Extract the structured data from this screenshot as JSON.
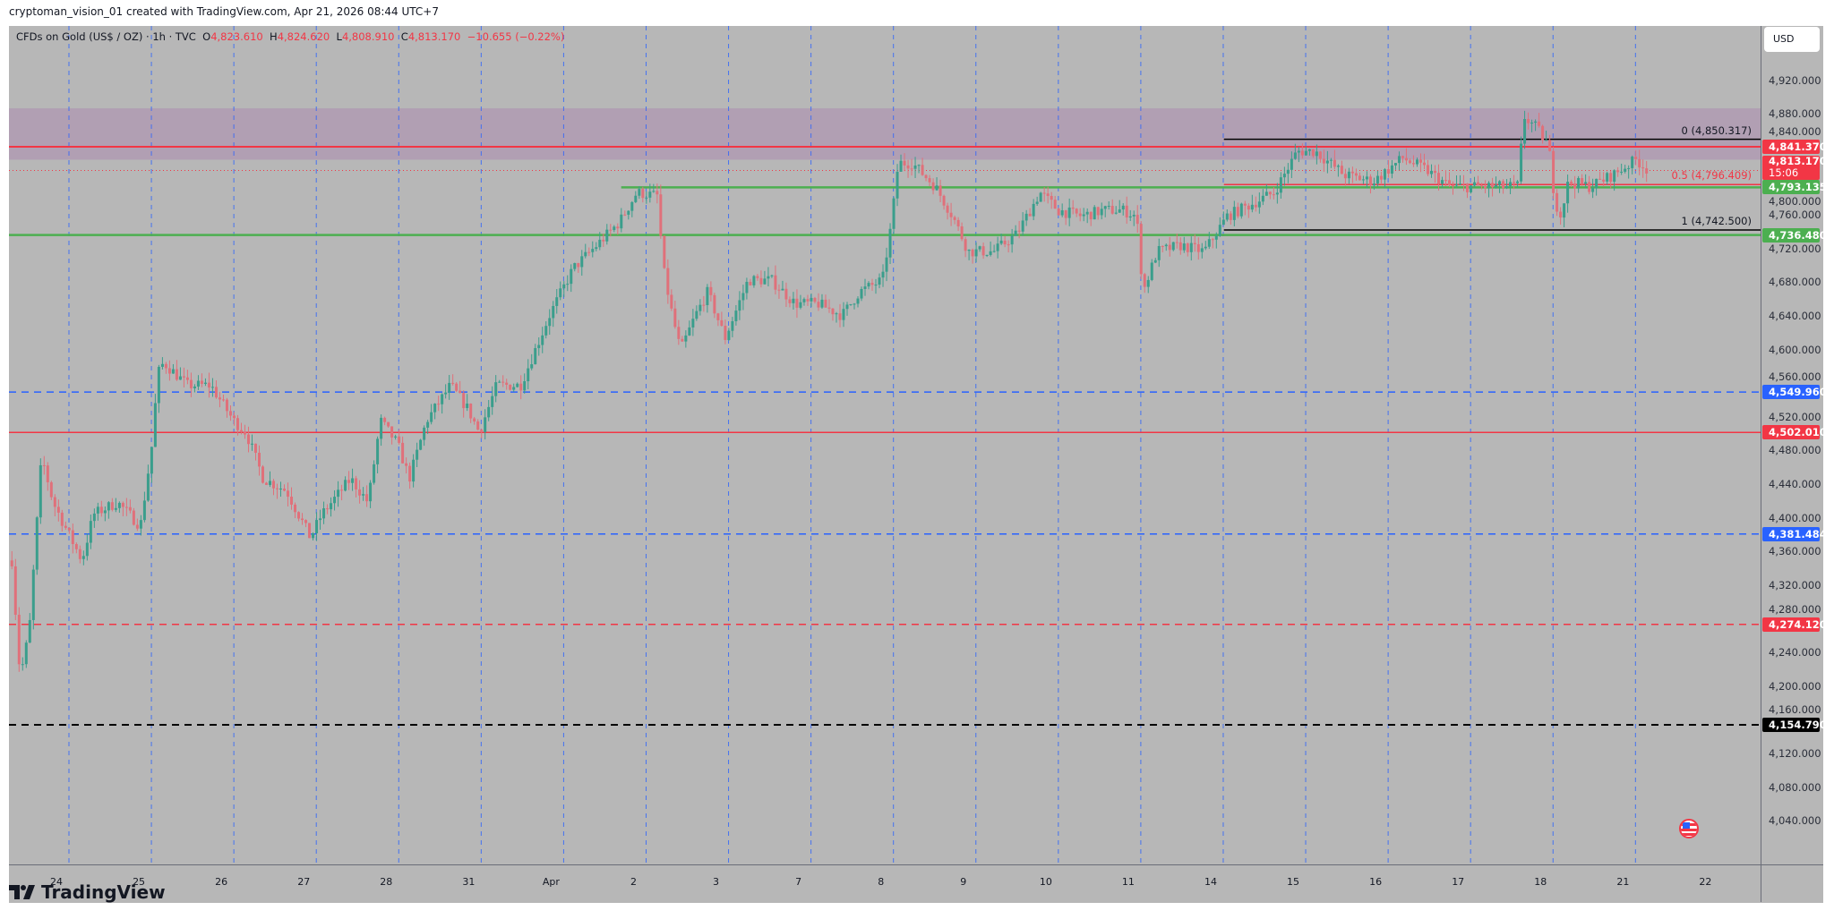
{
  "header": {
    "credit": "cryptoman_vision_01 created with TradingView.com, Apr 21, 2026 08:44 UTC+7",
    "symbol": "CFDs on Gold (US$ / OZ) · 1h · TVC",
    "o_label": "O",
    "o": "4,823.610",
    "h_label": "H",
    "h": "4,824.620",
    "l_label": "L",
    "l": "4,808.910",
    "c_label": "C",
    "c": "4,813.170",
    "change": "−10.655 (−0.22%)"
  },
  "axis": {
    "currency": "USD",
    "ticks": [
      "4,920.000",
      "4,880.000",
      "4,840.000",
      "4,800.000",
      "4,760.000",
      "4,720.000",
      "4,680.000",
      "4,640.000",
      "4,600.000",
      "4,560.000",
      "4,520.000",
      "4,480.000",
      "4,440.000",
      "4,400.000",
      "4,360.000",
      "4,320.000",
      "4,280.000",
      "4,240.000",
      "4,200.000",
      "4,160.000",
      "4,120.000",
      "4,080.000",
      "4,040.000"
    ],
    "tick_values": [
      4920,
      4880,
      4840,
      4800,
      4760,
      4720,
      4680,
      4640,
      4600,
      4560,
      4520,
      4480,
      4440,
      4400,
      4360,
      4320,
      4280,
      4240,
      4200,
      4160,
      4120,
      4080,
      4040
    ]
  },
  "time_labels": [
    "24",
    "25",
    "26",
    "27",
    "28",
    "31",
    "Apr",
    "2",
    "3",
    "7",
    "8",
    "9",
    "10",
    "11",
    "14",
    "15",
    "16",
    "17",
    "18",
    "21",
    "22"
  ],
  "price_tags": [
    {
      "label": "4,841.370",
      "price": 4841.37,
      "color": "#f23645"
    },
    {
      "label": "4,793.135",
      "price": 4793.135,
      "color": "#4caf50"
    },
    {
      "label": "4,736.480",
      "price": 4736.48,
      "color": "#4caf50"
    },
    {
      "label": "4,549.960",
      "price": 4549.96,
      "color": "#2962ff"
    },
    {
      "label": "4,502.010",
      "price": 4502.01,
      "color": "#f23645"
    },
    {
      "label": "4,381.484",
      "price": 4381.484,
      "color": "#2962ff"
    },
    {
      "label": "4,274.120",
      "price": 4274.12,
      "color": "#f23645"
    },
    {
      "label": "4,154.790",
      "price": 4154.79,
      "color": "#000000"
    }
  ],
  "current_price": {
    "label": "4,813.170",
    "price": 4813.17,
    "countdown": "15:06",
    "color": "#f23645"
  },
  "fib": [
    {
      "label": "0 (4,850.317)",
      "price": 4850.317,
      "color": "#131722"
    },
    {
      "label": "0.5 (4,796.409)",
      "price": 4796.409,
      "color": "#f23645"
    },
    {
      "label": "1 (4,742.500)",
      "price": 4742.5,
      "color": "#131722"
    }
  ],
  "zone": {
    "top": 4887,
    "bottom": 4826,
    "color": "#b19fb3"
  },
  "colors": {
    "up": "#3a9e8c",
    "down": "#e0707a",
    "background": "#b7b7b7",
    "grid_vline": "#2962ff"
  },
  "branding": "TradingView",
  "chart_data": {
    "type": "candlestick",
    "title": "CFDs on Gold (US$ / OZ) · 1h · TVC",
    "ylim": [
      4020,
      4940
    ],
    "x_unit": "trading days from 24 Mar",
    "waypoints": [
      [
        -0.54,
        4350
      ],
      [
        -0.44,
        4211
      ],
      [
        -0.33,
        4266
      ],
      [
        -0.18,
        4474
      ],
      [
        -0.04,
        4419
      ],
      [
        0.1,
        4391
      ],
      [
        0.31,
        4350
      ],
      [
        0.45,
        4405
      ],
      [
        0.74,
        4419
      ],
      [
        1.02,
        4391
      ],
      [
        1.16,
        4488
      ],
      [
        1.23,
        4572
      ],
      [
        1.3,
        4585
      ],
      [
        1.59,
        4558
      ],
      [
        1.87,
        4558
      ],
      [
        2.15,
        4516
      ],
      [
        2.3,
        4502
      ],
      [
        2.51,
        4447
      ],
      [
        2.79,
        4433
      ],
      [
        3.08,
        4377
      ],
      [
        3.22,
        4405
      ],
      [
        3.57,
        4447
      ],
      [
        3.78,
        4419
      ],
      [
        3.93,
        4516
      ],
      [
        4.14,
        4488
      ],
      [
        4.28,
        4447
      ],
      [
        4.49,
        4516
      ],
      [
        4.78,
        4558
      ],
      [
        4.99,
        4530
      ],
      [
        5.13,
        4502
      ],
      [
        5.34,
        4558
      ],
      [
        5.63,
        4558
      ],
      [
        5.98,
        4641
      ],
      [
        6.27,
        4697
      ],
      [
        6.55,
        4724
      ],
      [
        6.83,
        4752
      ],
      [
        7.04,
        4787
      ],
      [
        7.29,
        4783
      ],
      [
        7.36,
        4697
      ],
      [
        7.47,
        4641
      ],
      [
        7.57,
        4599
      ],
      [
        7.75,
        4641
      ],
      [
        7.9,
        4669
      ],
      [
        8.11,
        4614
      ],
      [
        8.39,
        4683
      ],
      [
        8.67,
        4683
      ],
      [
        8.96,
        4655
      ],
      [
        9.24,
        4655
      ],
      [
        9.53,
        4641
      ],
      [
        9.74,
        4669
      ],
      [
        10.02,
        4683
      ],
      [
        10.13,
        4752
      ],
      [
        10.21,
        4822
      ],
      [
        10.38,
        4822
      ],
      [
        10.66,
        4794
      ],
      [
        10.87,
        4759
      ],
      [
        11.06,
        4717
      ],
      [
        11.37,
        4717
      ],
      [
        11.65,
        4738
      ],
      [
        11.93,
        4787
      ],
      [
        12.15,
        4766
      ],
      [
        12.43,
        4759
      ],
      [
        12.71,
        4766
      ],
      [
        12.93,
        4766
      ],
      [
        13.1,
        4759
      ],
      [
        13.18,
        4669
      ],
      [
        13.35,
        4717
      ],
      [
        13.64,
        4724
      ],
      [
        13.92,
        4717
      ],
      [
        14.2,
        4759
      ],
      [
        14.49,
        4773
      ],
      [
        14.77,
        4787
      ],
      [
        15.05,
        4836
      ],
      [
        15.27,
        4836
      ],
      [
        15.62,
        4808
      ],
      [
        15.97,
        4800
      ],
      [
        16.33,
        4828
      ],
      [
        16.61,
        4814
      ],
      [
        16.9,
        4794
      ],
      [
        17.32,
        4794
      ],
      [
        17.72,
        4794
      ],
      [
        17.8,
        4877
      ],
      [
        17.96,
        4863
      ],
      [
        18.1,
        4842
      ],
      [
        18.17,
        4780
      ],
      [
        18.24,
        4759
      ],
      [
        18.34,
        4800
      ],
      [
        18.6,
        4794
      ],
      [
        18.88,
        4808
      ],
      [
        19.16,
        4826
      ],
      [
        19.31,
        4813
      ]
    ]
  }
}
